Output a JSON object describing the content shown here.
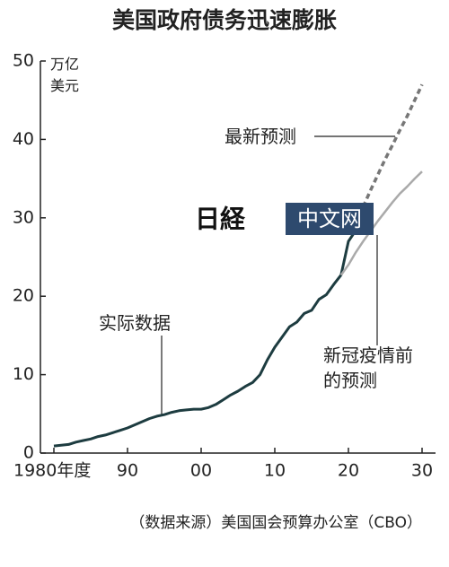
{
  "chart_data": {
    "type": "line",
    "title": "美国政府债务迅速膨胀",
    "y_unit": "万亿美元",
    "source": "（数据来源）美国国会预算办公室（CBO）",
    "watermark": {
      "logo": "日経",
      "text": "中文网"
    },
    "xlim": [
      1980,
      2030
    ],
    "ylim": [
      0,
      50
    ],
    "xticks": [
      {
        "value": 1980,
        "label": "1980年度"
      },
      {
        "value": 1990,
        "label": "90"
      },
      {
        "value": 2000,
        "label": "00"
      },
      {
        "value": 2010,
        "label": "10"
      },
      {
        "value": 2020,
        "label": "20"
      },
      {
        "value": 2030,
        "label": "30"
      }
    ],
    "yticks": [
      0,
      10,
      20,
      30,
      40,
      50
    ],
    "series": [
      {
        "name": "实际数据",
        "color": "#1d3c40",
        "dashed": false,
        "x": [
          1980,
          1981,
          1982,
          1983,
          1984,
          1985,
          1986,
          1987,
          1988,
          1989,
          1990,
          1991,
          1992,
          1993,
          1994,
          1995,
          1996,
          1997,
          1998,
          1999,
          2000,
          2001,
          2002,
          2003,
          2004,
          2005,
          2006,
          2007,
          2008,
          2009,
          2010,
          2011,
          2012,
          2013,
          2014,
          2015,
          2016,
          2017,
          2018,
          2019,
          2020,
          2021,
          2022
        ],
        "values": [
          0.9,
          1.0,
          1.1,
          1.4,
          1.6,
          1.8,
          2.1,
          2.3,
          2.6,
          2.9,
          3.2,
          3.6,
          4.0,
          4.4,
          4.7,
          4.9,
          5.2,
          5.4,
          5.5,
          5.6,
          5.6,
          5.8,
          6.2,
          6.8,
          7.4,
          7.9,
          8.5,
          9.0,
          10.0,
          11.9,
          13.5,
          14.8,
          16.1,
          16.7,
          17.8,
          18.2,
          19.6,
          20.2,
          21.5,
          22.7,
          27.0,
          28.4,
          31.4
        ]
      },
      {
        "name": "最新预测",
        "color": "#777777",
        "dashed": true,
        "x": [
          2022,
          2023,
          2024,
          2025,
          2026,
          2027,
          2028,
          2029,
          2030
        ],
        "values": [
          31.4,
          33.5,
          35.5,
          37.5,
          39.3,
          41.2,
          43.0,
          45.0,
          47.0
        ]
      },
      {
        "name": "新冠疫情前的预测",
        "color": "#aaaaaa",
        "dashed": false,
        "x": [
          2019,
          2020,
          2021,
          2022,
          2023,
          2024,
          2025,
          2026,
          2027,
          2028,
          2029,
          2030
        ],
        "values": [
          22.7,
          24.0,
          25.6,
          27.0,
          28.3,
          29.6,
          30.8,
          32.0,
          33.1,
          34.0,
          35.0,
          35.9
        ]
      }
    ]
  }
}
